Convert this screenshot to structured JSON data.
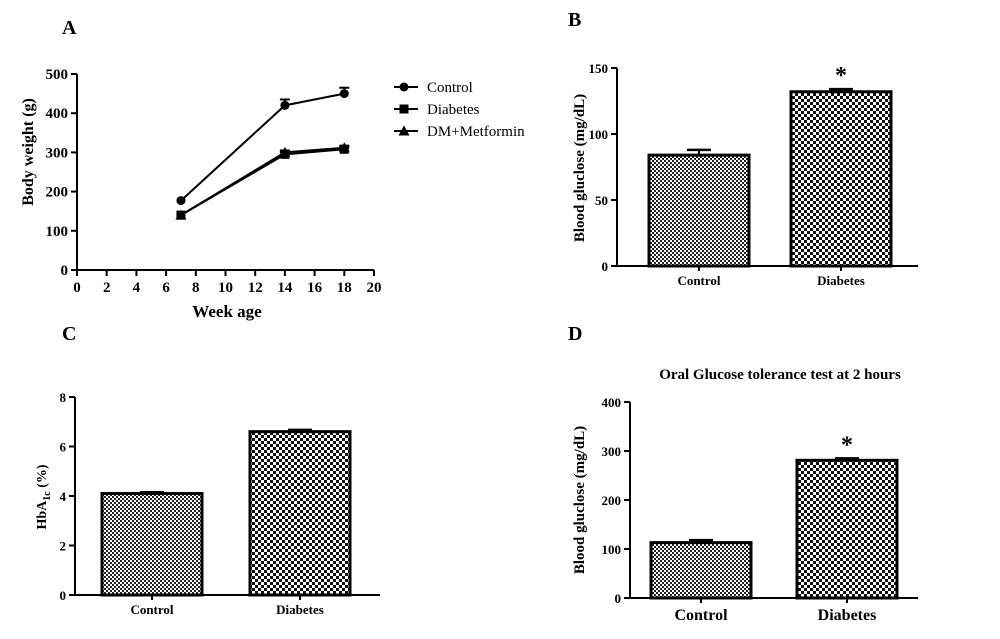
{
  "panels": {
    "A": {
      "letter": "A",
      "chart_data": {
        "type": "line",
        "x": [
          7,
          14,
          18
        ],
        "series": [
          {
            "name": "Control",
            "marker": "circle",
            "values": [
              177,
              420,
              450
            ],
            "errors": [
              0,
              15,
              15
            ]
          },
          {
            "name": "Diabetes",
            "marker": "square",
            "values": [
              140,
              295,
              308
            ],
            "errors": [
              0,
              6,
              6
            ]
          },
          {
            "name": "DM+Metformin",
            "marker": "triangle",
            "values": [
              140,
              300,
              312
            ],
            "errors": [
              0,
              5,
              5
            ]
          }
        ],
        "xlabel": "Week age",
        "ylabel": "Body weight (g)",
        "xlim": [
          0,
          20
        ],
        "ylim": [
          0,
          500
        ],
        "xticks": [
          "0",
          "2",
          "4",
          "6",
          "8",
          "10",
          "12",
          "14",
          "16",
          "18",
          "20"
        ],
        "yticks": [
          "0",
          "100",
          "200",
          "300",
          "400",
          "500"
        ],
        "legend_position": "right"
      }
    },
    "B": {
      "letter": "B",
      "chart_data": {
        "type": "bar",
        "categories": [
          "Control",
          "Diabetes"
        ],
        "values": [
          84,
          132
        ],
        "errors": [
          4,
          2
        ],
        "significance": [
          "",
          "*"
        ],
        "ylabel": "Blood gluclose (mg/dL)",
        "ylim": [
          0,
          150
        ],
        "yticks": [
          "0",
          "50",
          "100",
          "150"
        ]
      }
    },
    "C": {
      "letter": "C",
      "chart_data": {
        "type": "bar",
        "categories": [
          "Control",
          "Diabetes"
        ],
        "values": [
          4.1,
          6.6
        ],
        "errors": [
          0.05,
          0.07
        ],
        "ylabel_main": "HbA",
        "ylabel_sub": "1c",
        "ylabel_tail": " (%)",
        "ylim": [
          0,
          8
        ],
        "yticks": [
          "0",
          "2",
          "4",
          "6",
          "8"
        ]
      }
    },
    "D": {
      "letter": "D",
      "chart_data": {
        "type": "bar",
        "title": "Oral Glucose tolerance test at 2 hours",
        "categories": [
          "Control",
          "Diabetes"
        ],
        "values": [
          113,
          281
        ],
        "errors": [
          5,
          4
        ],
        "significance": [
          "",
          "*"
        ],
        "ylabel": "Blood gluclose (mg/dL)",
        "ylim": [
          0,
          400
        ],
        "yticks": [
          "0",
          "100",
          "200",
          "300",
          "400"
        ]
      }
    }
  }
}
